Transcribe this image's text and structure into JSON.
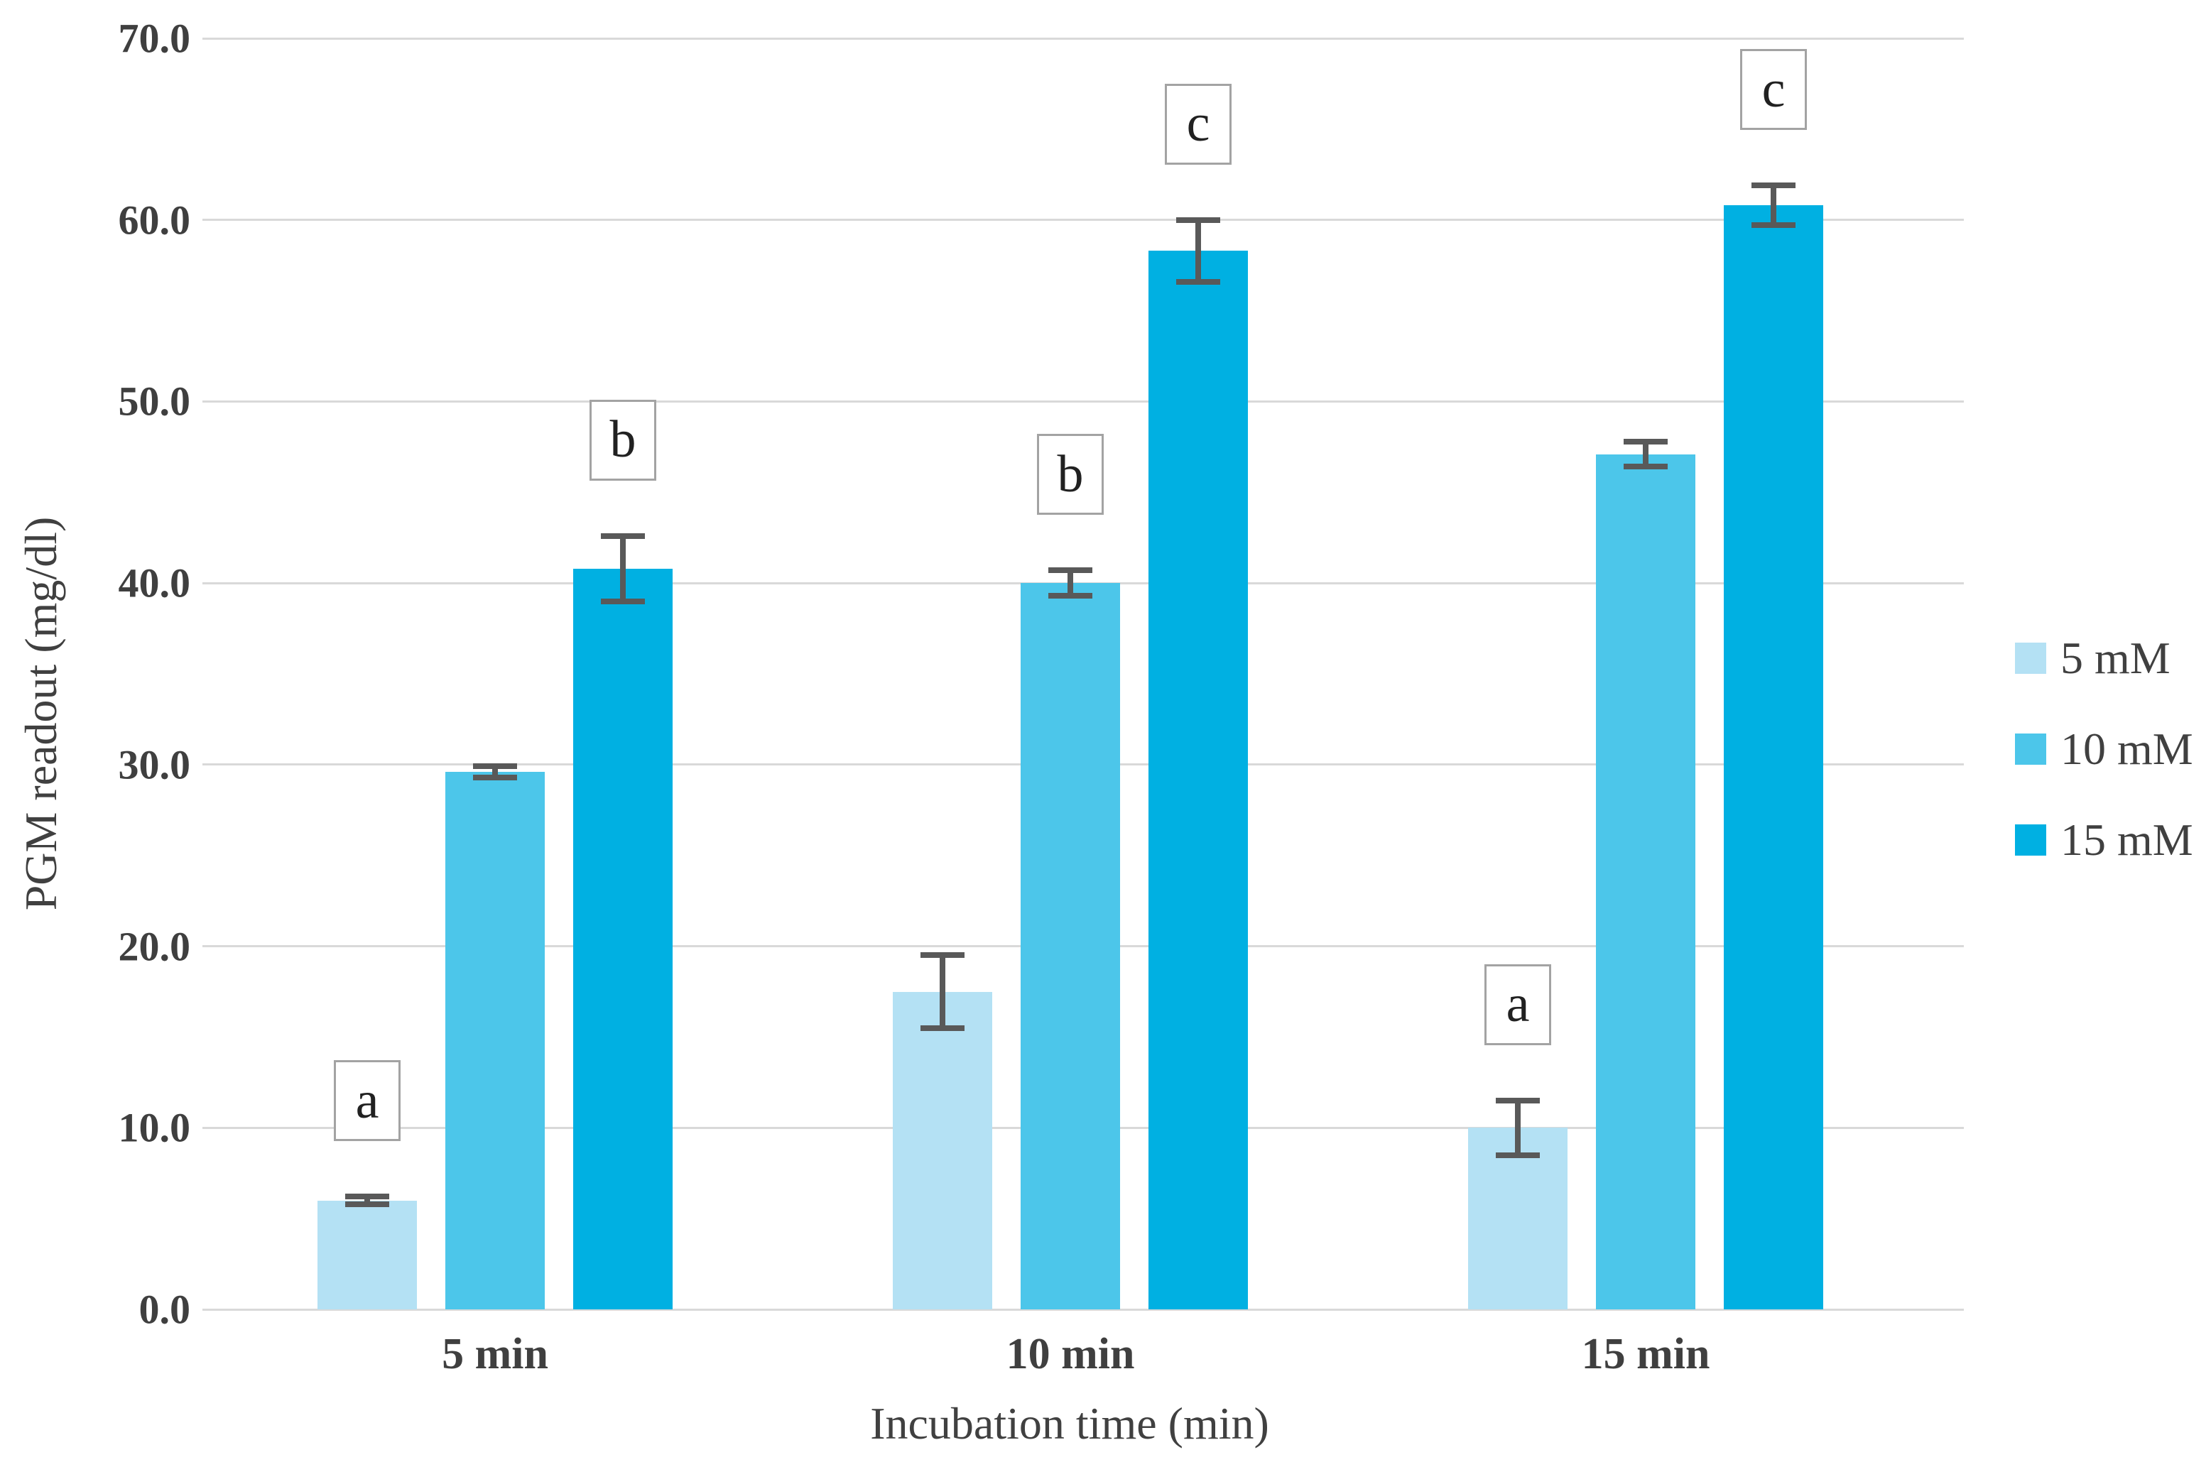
{
  "chart_data": {
    "type": "bar",
    "title": "",
    "xlabel": "Incubation time (min)",
    "ylabel": "PGM readout (mg/dl)",
    "categories": [
      "5 min",
      "10 min",
      "15 min"
    ],
    "series": [
      {
        "name": "5 mM",
        "color": "#B4E1F4",
        "values": [
          6.0,
          17.5,
          10.0
        ],
        "errors": [
          0.2,
          2.0,
          1.5
        ]
      },
      {
        "name": "10 mM",
        "color": "#4CC6EA",
        "values": [
          29.6,
          40.0,
          47.1
        ],
        "errors": [
          0.3,
          0.7,
          0.7
        ]
      },
      {
        "name": "15 mM",
        "color": "#00B0E2",
        "values": [
          40.8,
          58.3,
          60.8
        ],
        "errors": [
          1.8,
          1.7,
          1.1
        ]
      }
    ],
    "annotations": [
      {
        "category": "5 min",
        "series": "5 mM",
        "label": "a"
      },
      {
        "category": "5 min",
        "series": "15 mM",
        "label": "b"
      },
      {
        "category": "10 min",
        "series": "10 mM",
        "label": "b"
      },
      {
        "category": "10 min",
        "series": "15 mM",
        "label": "c"
      },
      {
        "category": "15 min",
        "series": "5 mM",
        "label": "a"
      },
      {
        "category": "15 min",
        "series": "15 mM",
        "label": "c"
      }
    ],
    "y_axis": {
      "min": 0,
      "max": 70,
      "step": 10,
      "tick_labels": [
        "0.0",
        "10.0",
        "20.0",
        "30.0",
        "40.0",
        "50.0",
        "60.0",
        "70.0"
      ]
    },
    "legend_position": "right",
    "grid": true,
    "error_bars": true,
    "colors": {
      "gridline": "#D9D9D9",
      "error_bar": "#595959",
      "tick_text": "#3F3F3F",
      "title_text": "#404040",
      "annotation_border": "#A3A3A3",
      "annotation_text": "#212121",
      "background": "#FFFFFF"
    }
  }
}
